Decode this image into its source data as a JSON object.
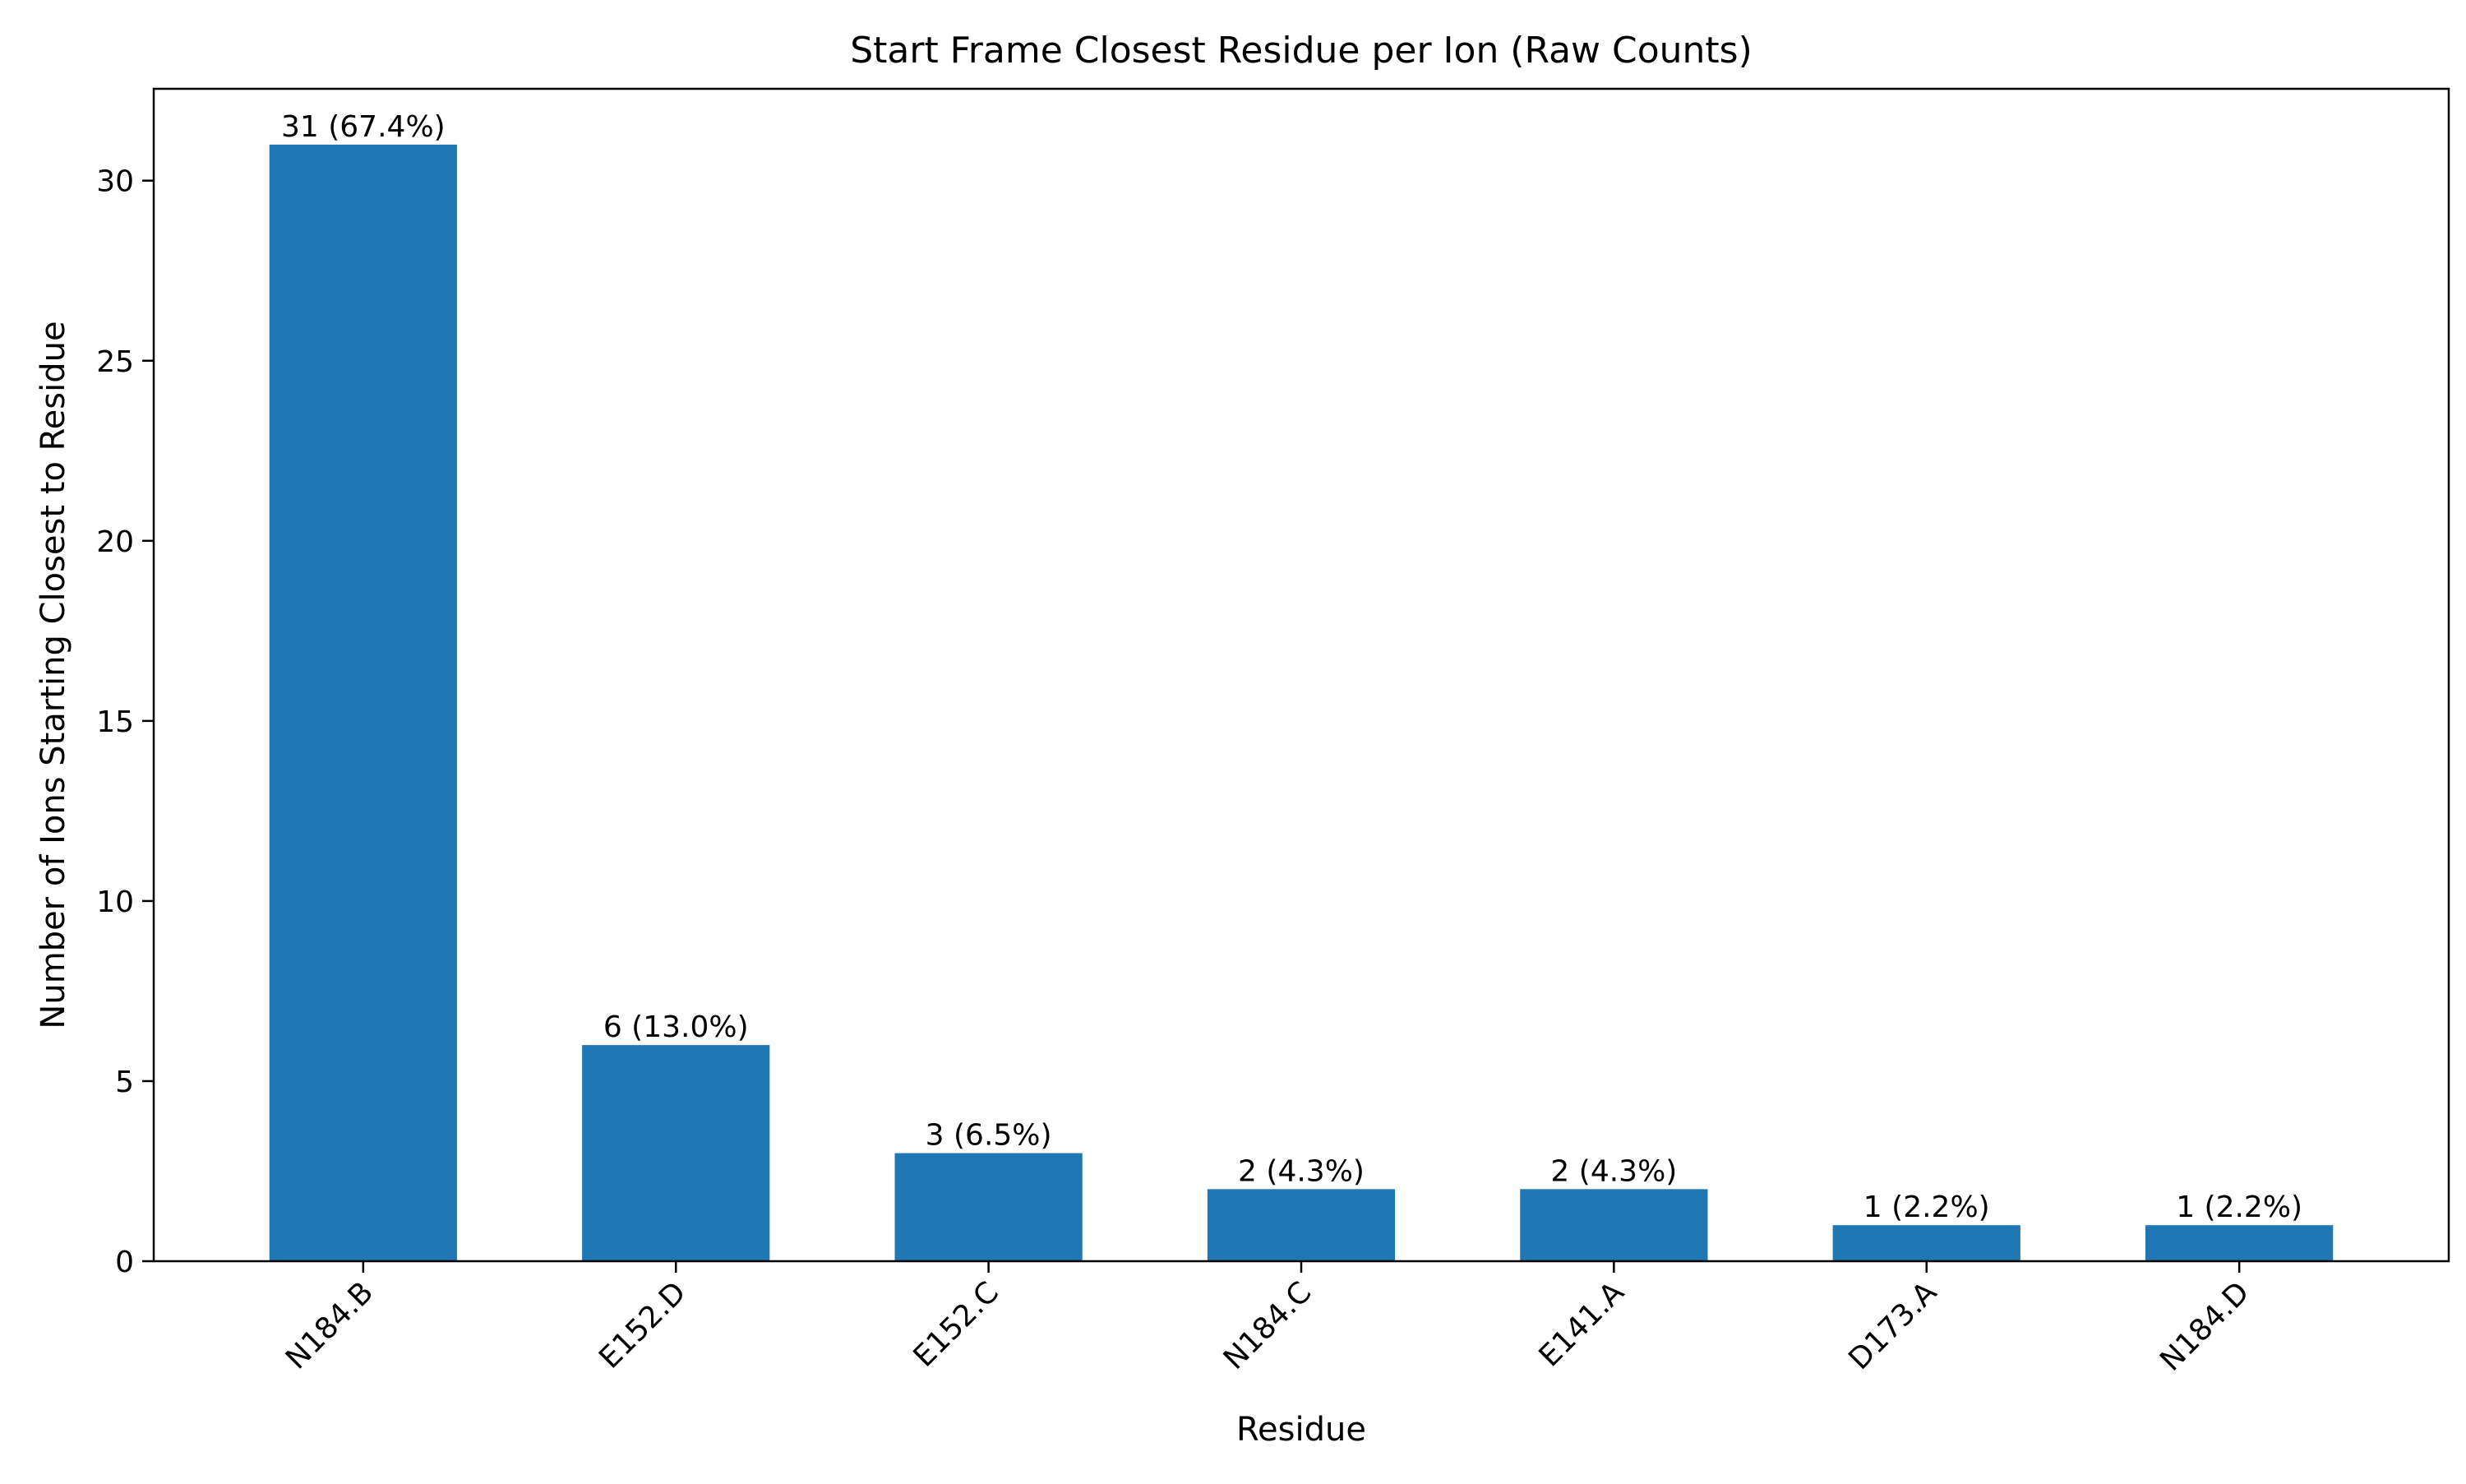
{
  "chart_data": {
    "type": "bar",
    "title": "Start Frame Closest Residue per Ion (Raw Counts)",
    "xlabel": "Residue",
    "ylabel": "Number of Ions Starting Closest to Residue",
    "categories": [
      "N184.B",
      "E152.D",
      "E152.C",
      "N184.C",
      "E141.A",
      "D173.A",
      "N184.D"
    ],
    "values": [
      31,
      6,
      3,
      2,
      2,
      1,
      1
    ],
    "data_labels": [
      "31 (67.4%)",
      "6 (13.0%)",
      "3 (6.5%)",
      "2 (4.3%)",
      "2 (4.3%)",
      "1 (2.2%)",
      "1 (2.2%)"
    ],
    "yticks": [
      0,
      5,
      10,
      15,
      20,
      25,
      30
    ],
    "ylim": [
      0,
      32.55
    ],
    "grid": false,
    "legend": "none",
    "bar_color": "#1f77b4"
  }
}
